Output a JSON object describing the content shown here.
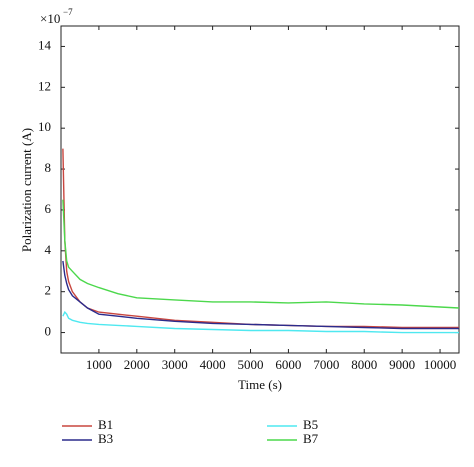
{
  "chart_data": {
    "type": "line",
    "y_label": "Polarization current (A)",
    "x_label": "Time (s)",
    "y_multiplier": "×10",
    "y_multiplier_exponent": "−7",
    "x": [
      50,
      100,
      150,
      200,
      300,
      500,
      700,
      1000,
      1500,
      2000,
      3000,
      4000,
      5000,
      6000,
      7000,
      8000,
      9000,
      10000,
      10500
    ],
    "series": [
      {
        "name": "B1",
        "color": "#c8463f",
        "values": [
          9,
          4.5,
          3,
          2.5,
          2,
          1.5,
          1.2,
          1.0,
          0.9,
          0.8,
          0.6,
          0.5,
          0.4,
          0.35,
          0.3,
          0.3,
          0.25,
          0.25,
          0.25
        ]
      },
      {
        "name": "B3",
        "color": "#2b2b8c",
        "values": [
          3.5,
          2.8,
          2.4,
          2.1,
          1.8,
          1.5,
          1.2,
          0.9,
          0.8,
          0.7,
          0.55,
          0.45,
          0.4,
          0.35,
          0.3,
          0.25,
          0.2,
          0.2,
          0.2
        ]
      },
      {
        "name": "B5",
        "color": "#4fe8f0",
        "values": [
          0.8,
          1.0,
          0.9,
          0.7,
          0.6,
          0.5,
          0.45,
          0.4,
          0.35,
          0.3,
          0.2,
          0.15,
          0.1,
          0.1,
          0.05,
          0.05,
          0,
          0,
          0
        ]
      },
      {
        "name": "B7",
        "color": "#4cd84c",
        "values": [
          6.5,
          4.5,
          3.5,
          3.2,
          3,
          2.6,
          2.4,
          2.2,
          1.9,
          1.7,
          1.6,
          1.5,
          1.5,
          1.45,
          1.5,
          1.4,
          1.35,
          1.25,
          1.2
        ]
      }
    ],
    "xlim": [
      0,
      10500
    ],
    "ylim": [
      -1,
      15
    ],
    "xticks": [
      1000,
      2000,
      3000,
      4000,
      5000,
      6000,
      7000,
      8000,
      9000,
      10000
    ],
    "yticks": [
      0,
      2,
      4,
      6,
      8,
      10,
      12,
      14
    ],
    "grid": false
  }
}
